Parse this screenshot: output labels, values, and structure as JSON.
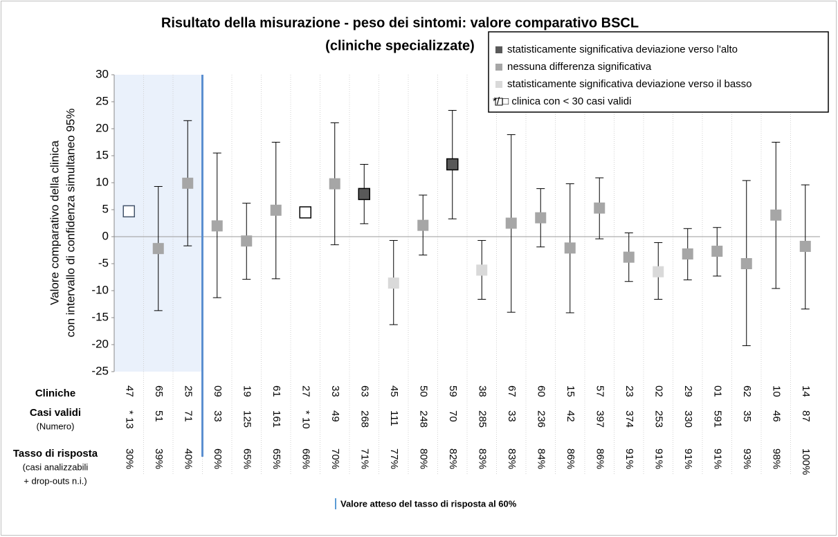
{
  "chart_data": {
    "type": "errorbar",
    "title": "Risultato della misurazione - peso dei sintomi: valore comparativo BSCL",
    "subtitle": "(cliniche specializzate)",
    "y_label": [
      "Valore comparativo della clinica",
      "con intervallo di confidenza simultaneo 95%"
    ],
    "categories": [
      "47",
      "65",
      "25",
      "09",
      "19",
      "61",
      "27",
      "33",
      "63",
      "45",
      "50",
      "59",
      "38",
      "67",
      "60",
      "15",
      "57",
      "23",
      "02",
      "29",
      "01",
      "62",
      "10",
      "14"
    ],
    "values": [
      4.7,
      -2.2,
      9.9,
      2.0,
      -0.8,
      4.9,
      4.5,
      9.8,
      7.9,
      -8.6,
      2.1,
      13.4,
      -6.2,
      2.5,
      3.5,
      -2.1,
      5.3,
      -3.8,
      -6.5,
      -3.2,
      -2.7,
      -5.0,
      4.0,
      -1.8
    ],
    "ci_lower": [
      null,
      -13.7,
      -1.7,
      -11.3,
      -7.9,
      -7.8,
      null,
      -1.5,
      2.4,
      -16.3,
      -3.4,
      3.3,
      -11.6,
      -14.0,
      -1.9,
      -14.1,
      -0.4,
      -8.3,
      -11.6,
      -8.0,
      -7.3,
      -20.2,
      -9.6,
      -13.4
    ],
    "ci_upper": [
      null,
      9.3,
      21.5,
      15.5,
      6.2,
      17.5,
      null,
      21.1,
      13.4,
      -0.7,
      7.7,
      23.4,
      -0.7,
      18.9,
      8.9,
      9.8,
      10.9,
      0.7,
      -1.1,
      1.5,
      1.7,
      10.4,
      17.5,
      9.6
    ],
    "point_colors": [
      "none",
      "#a6a6a6",
      "#a6a6a6",
      "#a6a6a6",
      "#a6a6a6",
      "#a6a6a6",
      "none",
      "#a6a6a6",
      "#595959",
      "#d9d9d9",
      "#a6a6a6",
      "#595959",
      "#d9d9d9",
      "#a6a6a6",
      "#a6a6a6",
      "#a6a6a6",
      "#a6a6a6",
      "#a6a6a6",
      "#d9d9d9",
      "#a6a6a6",
      "#a6a6a6",
      "#a6a6a6",
      "#a6a6a6",
      "#a6a6a6"
    ],
    "ylim": [
      -25,
      30
    ],
    "yticks": [
      -25,
      -20,
      -15,
      -10,
      -5,
      0,
      5,
      10,
      15,
      20,
      25,
      30
    ],
    "shaded_count": 3,
    "legend": [
      {
        "name": "statisticamente significativa deviazione verso l'alto",
        "color": "#595959"
      },
      {
        "name": "nessuna differenza significativa",
        "color": "#a6a6a6"
      },
      {
        "name": "statisticamente significativa deviazione verso il basso",
        "color": "#d9d9d9"
      },
      {
        "name": "*/ □ clinica con < 30 casi validi",
        "color": "none"
      }
    ],
    "row_labels": {
      "cliniche": "Cliniche",
      "casi": [
        "Casi validi",
        "(Numero)"
      ],
      "tasso": [
        "Tasso di risposta",
        "(casi analizzabili",
        "+ drop-outs n.i.)"
      ]
    },
    "casi_validi": [
      "* 13",
      "51",
      "71",
      "33",
      "125",
      "161",
      "* 10",
      "49",
      "268",
      "111",
      "248",
      "70",
      "285",
      "33",
      "236",
      "42",
      "397",
      "374",
      "253",
      "330",
      "591",
      "35",
      "46",
      "87"
    ],
    "tasso_risposta": [
      "30%",
      "39%",
      "40%",
      "60%",
      "65%",
      "65%",
      "66%",
      "70%",
      "71%",
      "77%",
      "80%",
      "82%",
      "83%",
      "83%",
      "84%",
      "86%",
      "86%",
      "91%",
      "91%",
      "91%",
      "91%",
      "93%",
      "98%",
      "100%"
    ],
    "note": "Valore atteso del tasso di risposta al 60%"
  }
}
